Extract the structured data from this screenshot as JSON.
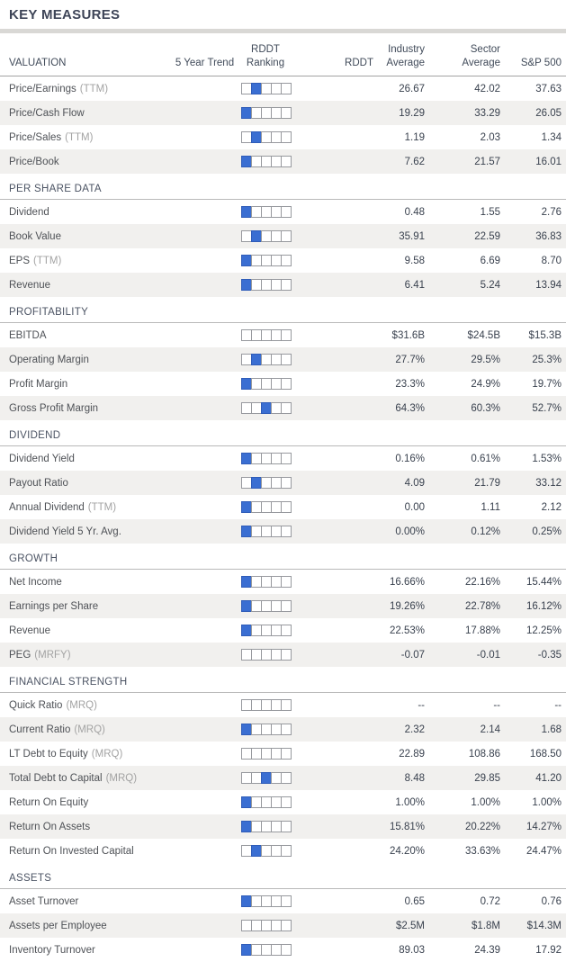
{
  "title": "KEY MEASURES",
  "header": {
    "trend_line1": "RDDT",
    "trend_line2": "5 Year Trend",
    "ranking_line2": "Ranking",
    "rddt": "RDDT",
    "industry_line1": "Industry",
    "industry_line2": "Average",
    "sector_line1": "Sector",
    "sector_line2": "Average",
    "sp500": "S&P 500"
  },
  "colors": {
    "rank_filled": "#3a6ed2",
    "rank_border": "#97999e",
    "stripe": "#f1f0ee",
    "title_text": "#3d4457"
  },
  "ranking_box_count": 5,
  "sections": [
    {
      "name": "VALUATION",
      "rows": [
        {
          "label": "Price/Earnings",
          "suffix": "(TTM)",
          "rank": 2,
          "rddt": "",
          "industry": "26.67",
          "sector": "42.02",
          "sp500": "37.63"
        },
        {
          "label": "Price/Cash Flow",
          "suffix": "",
          "rank": 1,
          "rddt": "",
          "industry": "19.29",
          "sector": "33.29",
          "sp500": "26.05"
        },
        {
          "label": "Price/Sales",
          "suffix": "(TTM)",
          "rank": 2,
          "rddt": "",
          "industry": "1.19",
          "sector": "2.03",
          "sp500": "1.34"
        },
        {
          "label": "Price/Book",
          "suffix": "",
          "rank": 1,
          "rddt": "",
          "industry": "7.62",
          "sector": "21.57",
          "sp500": "16.01"
        }
      ]
    },
    {
      "name": "PER SHARE DATA",
      "rows": [
        {
          "label": "Dividend",
          "suffix": "",
          "rank": 1,
          "rddt": "",
          "industry": "0.48",
          "sector": "1.55",
          "sp500": "2.76"
        },
        {
          "label": "Book Value",
          "suffix": "",
          "rank": 2,
          "rddt": "",
          "industry": "35.91",
          "sector": "22.59",
          "sp500": "36.83"
        },
        {
          "label": "EPS",
          "suffix": "(TTM)",
          "rank": 1,
          "rddt": "",
          "industry": "9.58",
          "sector": "6.69",
          "sp500": "8.70"
        },
        {
          "label": "Revenue",
          "suffix": "",
          "rank": 1,
          "rddt": "",
          "industry": "6.41",
          "sector": "5.24",
          "sp500": "13.94"
        }
      ]
    },
    {
      "name": "PROFITABILITY",
      "rows": [
        {
          "label": "EBITDA",
          "suffix": "",
          "rank": 0,
          "rddt": "",
          "industry": "$31.6B",
          "sector": "$24.5B",
          "sp500": "$15.3B"
        },
        {
          "label": "Operating Margin",
          "suffix": "",
          "rank": 2,
          "rddt": "",
          "industry": "27.7%",
          "sector": "29.5%",
          "sp500": "25.3%"
        },
        {
          "label": "Profit Margin",
          "suffix": "",
          "rank": 1,
          "rddt": "",
          "industry": "23.3%",
          "sector": "24.9%",
          "sp500": "19.7%"
        },
        {
          "label": "Gross Profit Margin",
          "suffix": "",
          "rank": 3,
          "rddt": "",
          "industry": "64.3%",
          "sector": "60.3%",
          "sp500": "52.7%"
        }
      ]
    },
    {
      "name": "DIVIDEND",
      "rows": [
        {
          "label": "Dividend Yield",
          "suffix": "",
          "rank": 1,
          "rddt": "",
          "industry": "0.16%",
          "sector": "0.61%",
          "sp500": "1.53%"
        },
        {
          "label": "Payout Ratio",
          "suffix": "",
          "rank": 2,
          "rddt": "",
          "industry": "4.09",
          "sector": "21.79",
          "sp500": "33.12"
        },
        {
          "label": "Annual Dividend",
          "suffix": "(TTM)",
          "rank": 1,
          "rddt": "",
          "industry": "0.00",
          "sector": "1.11",
          "sp500": "2.12"
        },
        {
          "label": "Dividend Yield 5 Yr. Avg.",
          "suffix": "",
          "rank": 1,
          "rddt": "",
          "industry": "0.00%",
          "sector": "0.12%",
          "sp500": "0.25%"
        }
      ]
    },
    {
      "name": "GROWTH",
      "rows": [
        {
          "label": "Net Income",
          "suffix": "",
          "rank": 1,
          "rddt": "",
          "industry": "16.66%",
          "sector": "22.16%",
          "sp500": "15.44%"
        },
        {
          "label": "Earnings per Share",
          "suffix": "",
          "rank": 1,
          "rddt": "",
          "industry": "19.26%",
          "sector": "22.78%",
          "sp500": "16.12%"
        },
        {
          "label": "Revenue",
          "suffix": "",
          "rank": 1,
          "rddt": "",
          "industry": "22.53%",
          "sector": "17.88%",
          "sp500": "12.25%"
        },
        {
          "label": "PEG",
          "suffix": "(MRFY)",
          "rank": 0,
          "rddt": "",
          "industry": "-0.07",
          "sector": "-0.01",
          "sp500": "-0.35"
        }
      ]
    },
    {
      "name": "FINANCIAL STRENGTH",
      "rows": [
        {
          "label": "Quick Ratio",
          "suffix": "(MRQ)",
          "rank": 0,
          "rddt": "",
          "industry": "--",
          "sector": "--",
          "sp500": "--"
        },
        {
          "label": "Current Ratio",
          "suffix": "(MRQ)",
          "rank": 1,
          "rddt": "",
          "industry": "2.32",
          "sector": "2.14",
          "sp500": "1.68"
        },
        {
          "label": "LT Debt to Equity",
          "suffix": "(MRQ)",
          "rank": 0,
          "rddt": "",
          "industry": "22.89",
          "sector": "108.86",
          "sp500": "168.50"
        },
        {
          "label": "Total Debt to Capital",
          "suffix": "(MRQ)",
          "rank": 3,
          "rddt": "",
          "industry": "8.48",
          "sector": "29.85",
          "sp500": "41.20"
        },
        {
          "label": "Return On Equity",
          "suffix": "",
          "rank": 1,
          "rddt": "",
          "industry": "1.00%",
          "sector": "1.00%",
          "sp500": "1.00%"
        },
        {
          "label": "Return On Assets",
          "suffix": "",
          "rank": 1,
          "rddt": "",
          "industry": "15.81%",
          "sector": "20.22%",
          "sp500": "14.27%"
        },
        {
          "label": "Return On Invested Capital",
          "suffix": "",
          "rank": 2,
          "rddt": "",
          "industry": "24.20%",
          "sector": "33.63%",
          "sp500": "24.47%"
        }
      ]
    },
    {
      "name": "ASSETS",
      "rows": [
        {
          "label": "Asset Turnover",
          "suffix": "",
          "rank": 1,
          "rddt": "",
          "industry": "0.65",
          "sector": "0.72",
          "sp500": "0.76"
        },
        {
          "label": "Assets per Employee",
          "suffix": "",
          "rank": 0,
          "rddt": "",
          "industry": "$2.5M",
          "sector": "$1.8M",
          "sp500": "$14.3M"
        },
        {
          "label": "Inventory Turnover",
          "suffix": "",
          "rank": 1,
          "rddt": "",
          "industry": "89.03",
          "sector": "24.39",
          "sp500": "17.92"
        }
      ]
    }
  ]
}
